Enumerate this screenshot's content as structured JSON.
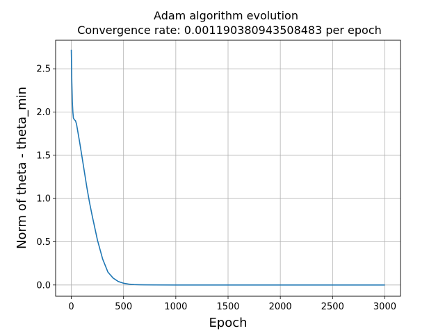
{
  "chart_data": {
    "type": "line",
    "title": [
      "Adam algorithm evolution",
      "Convergence rate: 0.001190380943508483 per epoch"
    ],
    "xlabel": "Epoch",
    "ylabel": "Norm of  theta - theta_min",
    "xlim": [
      -150,
      3150
    ],
    "ylim": [
      -0.13,
      2.83
    ],
    "xticks": [
      0,
      500,
      1000,
      1500,
      2000,
      2500,
      3000
    ],
    "yticks": [
      0.0,
      0.5,
      1.0,
      1.5,
      2.0,
      2.5
    ],
    "xtick_labels": [
      "0",
      "500",
      "1000",
      "1500",
      "2000",
      "2500",
      "3000"
    ],
    "ytick_labels": [
      "0.0",
      "0.5",
      "1.0",
      "1.5",
      "2.0",
      "2.5"
    ],
    "grid": true,
    "series_color": "#1f77b4",
    "series": [
      {
        "x": [
          0,
          5,
          10,
          15,
          20,
          30,
          40,
          50,
          60,
          80,
          100,
          125,
          150,
          175,
          200,
          250,
          300,
          350,
          400,
          450,
          500,
          550,
          600,
          650,
          700,
          800,
          1000,
          1500,
          2000,
          2500,
          3000
        ],
        "y": [
          2.72,
          2.35,
          2.12,
          2.0,
          1.93,
          1.91,
          1.9,
          1.86,
          1.79,
          1.65,
          1.5,
          1.31,
          1.12,
          0.95,
          0.8,
          0.52,
          0.3,
          0.15,
          0.08,
          0.04,
          0.02,
          0.01,
          0.005,
          0.003,
          0.002,
          0.001,
          0.0,
          0.0,
          0.0,
          0.0,
          0.0
        ]
      }
    ]
  }
}
